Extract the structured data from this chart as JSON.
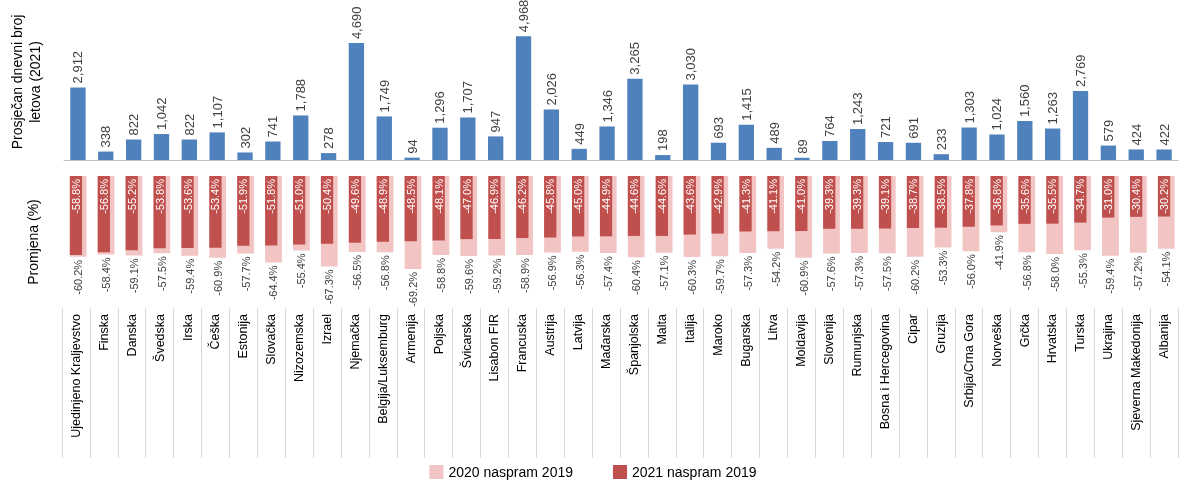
{
  "chart_data": [
    {
      "type": "bar",
      "ylabel": "Prosječan dnevni broj\nletova (2021)",
      "tick_labels": false,
      "grid": false,
      "legend": false,
      "categories": [
        null,
        null,
        null,
        null,
        null,
        null,
        null,
        null,
        null,
        null,
        null,
        null,
        null,
        null,
        null,
        null,
        null,
        null,
        null,
        null,
        null,
        null,
        null,
        null,
        null,
        null,
        null,
        null,
        null,
        null,
        null,
        null,
        null,
        null,
        null,
        null,
        null,
        null,
        null,
        null
      ],
      "series": [
        {
          "color": "#4f81bd",
          "values": [
            2912,
            338,
            822,
            1042,
            822,
            1107,
            302,
            741,
            1788,
            278,
            4690,
            1749,
            94,
            1296,
            1707,
            947,
            4968,
            2026,
            449,
            1346,
            3265,
            198,
            3030,
            693,
            1415,
            489,
            89,
            764,
            1243,
            721,
            691,
            233,
            1303,
            1024,
            1560,
            1263,
            2769,
            579,
            424,
            422
          ],
          "value_labels": [
            "2,912",
            "338",
            "822",
            "1,042",
            "822",
            "1,107",
            "302",
            "741",
            "1,788",
            "278",
            "4,690",
            "1,749",
            "94",
            "1,296",
            "1,707",
            "947",
            "4,968",
            "2,026",
            "449",
            "1,346",
            "3,265",
            "198",
            "3,030",
            "693",
            "1,415",
            "489",
            "89",
            "764",
            "1,243",
            "721",
            "691",
            "233",
            "1,303",
            "1,024",
            "1,560",
            "1,263",
            "2,769",
            "579",
            "424",
            "422"
          ]
        }
      ]
    },
    {
      "type": "bar",
      "ylabel": "Promjena (%)",
      "tick_labels": "x",
      "grid": false,
      "legend": "bottom",
      "categories": [
        "Ujedinjeno Kraljevstvo",
        "Finska",
        "Danska",
        "Švedska",
        "Irska",
        "Češka",
        "Estonija",
        "Slovačka",
        "Nizozemska",
        "Izrael",
        "Njemačka",
        "Belgija/Luksemburg",
        "Armenija",
        "Poljska",
        "Švicarska",
        "Lisabon FIR",
        "Francuska",
        "Austrija",
        "Latvija",
        "Mađarska",
        "Španjolska",
        "Malta",
        "Italija",
        "Maroko",
        "Bugarska",
        "Litva",
        "Moldavija",
        "Slovenija",
        "Rumunjska",
        "Bosna i Hercegovina",
        "Cipar",
        "Gruzija",
        "Srbija/Crna Gora",
        "Norveška",
        "Grčka",
        "Hrvatska",
        "Turska",
        "Ukrajina",
        "Sjeverna Makedonija",
        "Albanija"
      ],
      "series": [
        {
          "name": "2020 naspram 2019",
          "color": "#f2c4c4",
          "values": [
            -60.2,
            -58.4,
            -59.1,
            -57.5,
            -59.4,
            -60.9,
            -57.7,
            -64.4,
            -55.4,
            -67.3,
            -56.5,
            -56.8,
            -69.2,
            -58.8,
            -59.6,
            -59.2,
            -58.9,
            -56.9,
            -56.3,
            -57.4,
            -60.4,
            -57.1,
            -60.3,
            -59.7,
            -57.3,
            -54.2,
            -60.9,
            -57.6,
            -57.3,
            -57.5,
            -60.2,
            -53.3,
            -56.0,
            -41.9,
            -56.8,
            -58.0,
            -55.3,
            -59.4,
            -57.2,
            -54.1
          ],
          "value_labels": [
            "-60.2%",
            "-58.4%",
            "-59.1%",
            "-57.5%",
            "-59.4%",
            "-60.9%",
            "-57.7%",
            "-64.4%",
            "-55.4%",
            "-67.3%",
            "-56.5%",
            "-56.8%",
            "-69.2%",
            "-58.8%",
            "-59.6%",
            "-59.2%",
            "-58.9%",
            "-56.9%",
            "-56.3%",
            "-57.4%",
            "-60.4%",
            "-57.1%",
            "-60.3%",
            "-59.7%",
            "-57.3%",
            "-54.2%",
            "-60.9%",
            "-57.6%",
            "-57.3%",
            "-57.5%",
            "-60.2%",
            "-53.3%",
            "-56.0%",
            "-41.9%",
            "-56.8%",
            "-58.0%",
            "-55.3%",
            "-59.4%",
            "-57.2%",
            "-54.1%"
          ]
        },
        {
          "name": "2021 naspram 2019",
          "color": "#c0504d",
          "values": [
            -58.8,
            -56.8,
            -55.2,
            -53.8,
            -53.6,
            -53.4,
            -51.9,
            -51.8,
            -51.0,
            -50.4,
            -49.6,
            -48.9,
            -48.5,
            -48.1,
            -47.0,
            -46.9,
            -46.2,
            -45.8,
            -45.0,
            -44.9,
            -44.6,
            -44.6,
            -43.6,
            -42.9,
            -41.3,
            -41.1,
            -41.0,
            -39.3,
            -39.3,
            -39.1,
            -38.7,
            -38.5,
            -37.8,
            -36.8,
            -35.6,
            -35.5,
            -34.7,
            -31.0,
            -30.4,
            -30.2
          ],
          "value_labels": [
            "-58.8%",
            "-56.8%",
            "-55.2%",
            "-53.8%",
            "-53.6%",
            "-53.4%",
            "-51.9%",
            "-51.8%",
            "-51.0%",
            "-50.4%",
            "-49.6%",
            "-48.9%",
            "-48.5%",
            "-48.1%",
            "-47.0%",
            "-46.9%",
            "-46.2%",
            "-45.8%",
            "-45.0%",
            "-44.9%",
            "-44.6%",
            "-44.6%",
            "-43.6%",
            "-42.9%",
            "-41.3%",
            "-41.1%",
            "-41.0%",
            "-39.3%",
            "-39.3%",
            "-39.1%",
            "-38.7%",
            "-38.5%",
            "-37.8%",
            "-36.8%",
            "-35.6%",
            "-35.5%",
            "-34.7%",
            "-31.0%",
            "-30.4%",
            "-30.2%"
          ]
        }
      ]
    }
  ]
}
